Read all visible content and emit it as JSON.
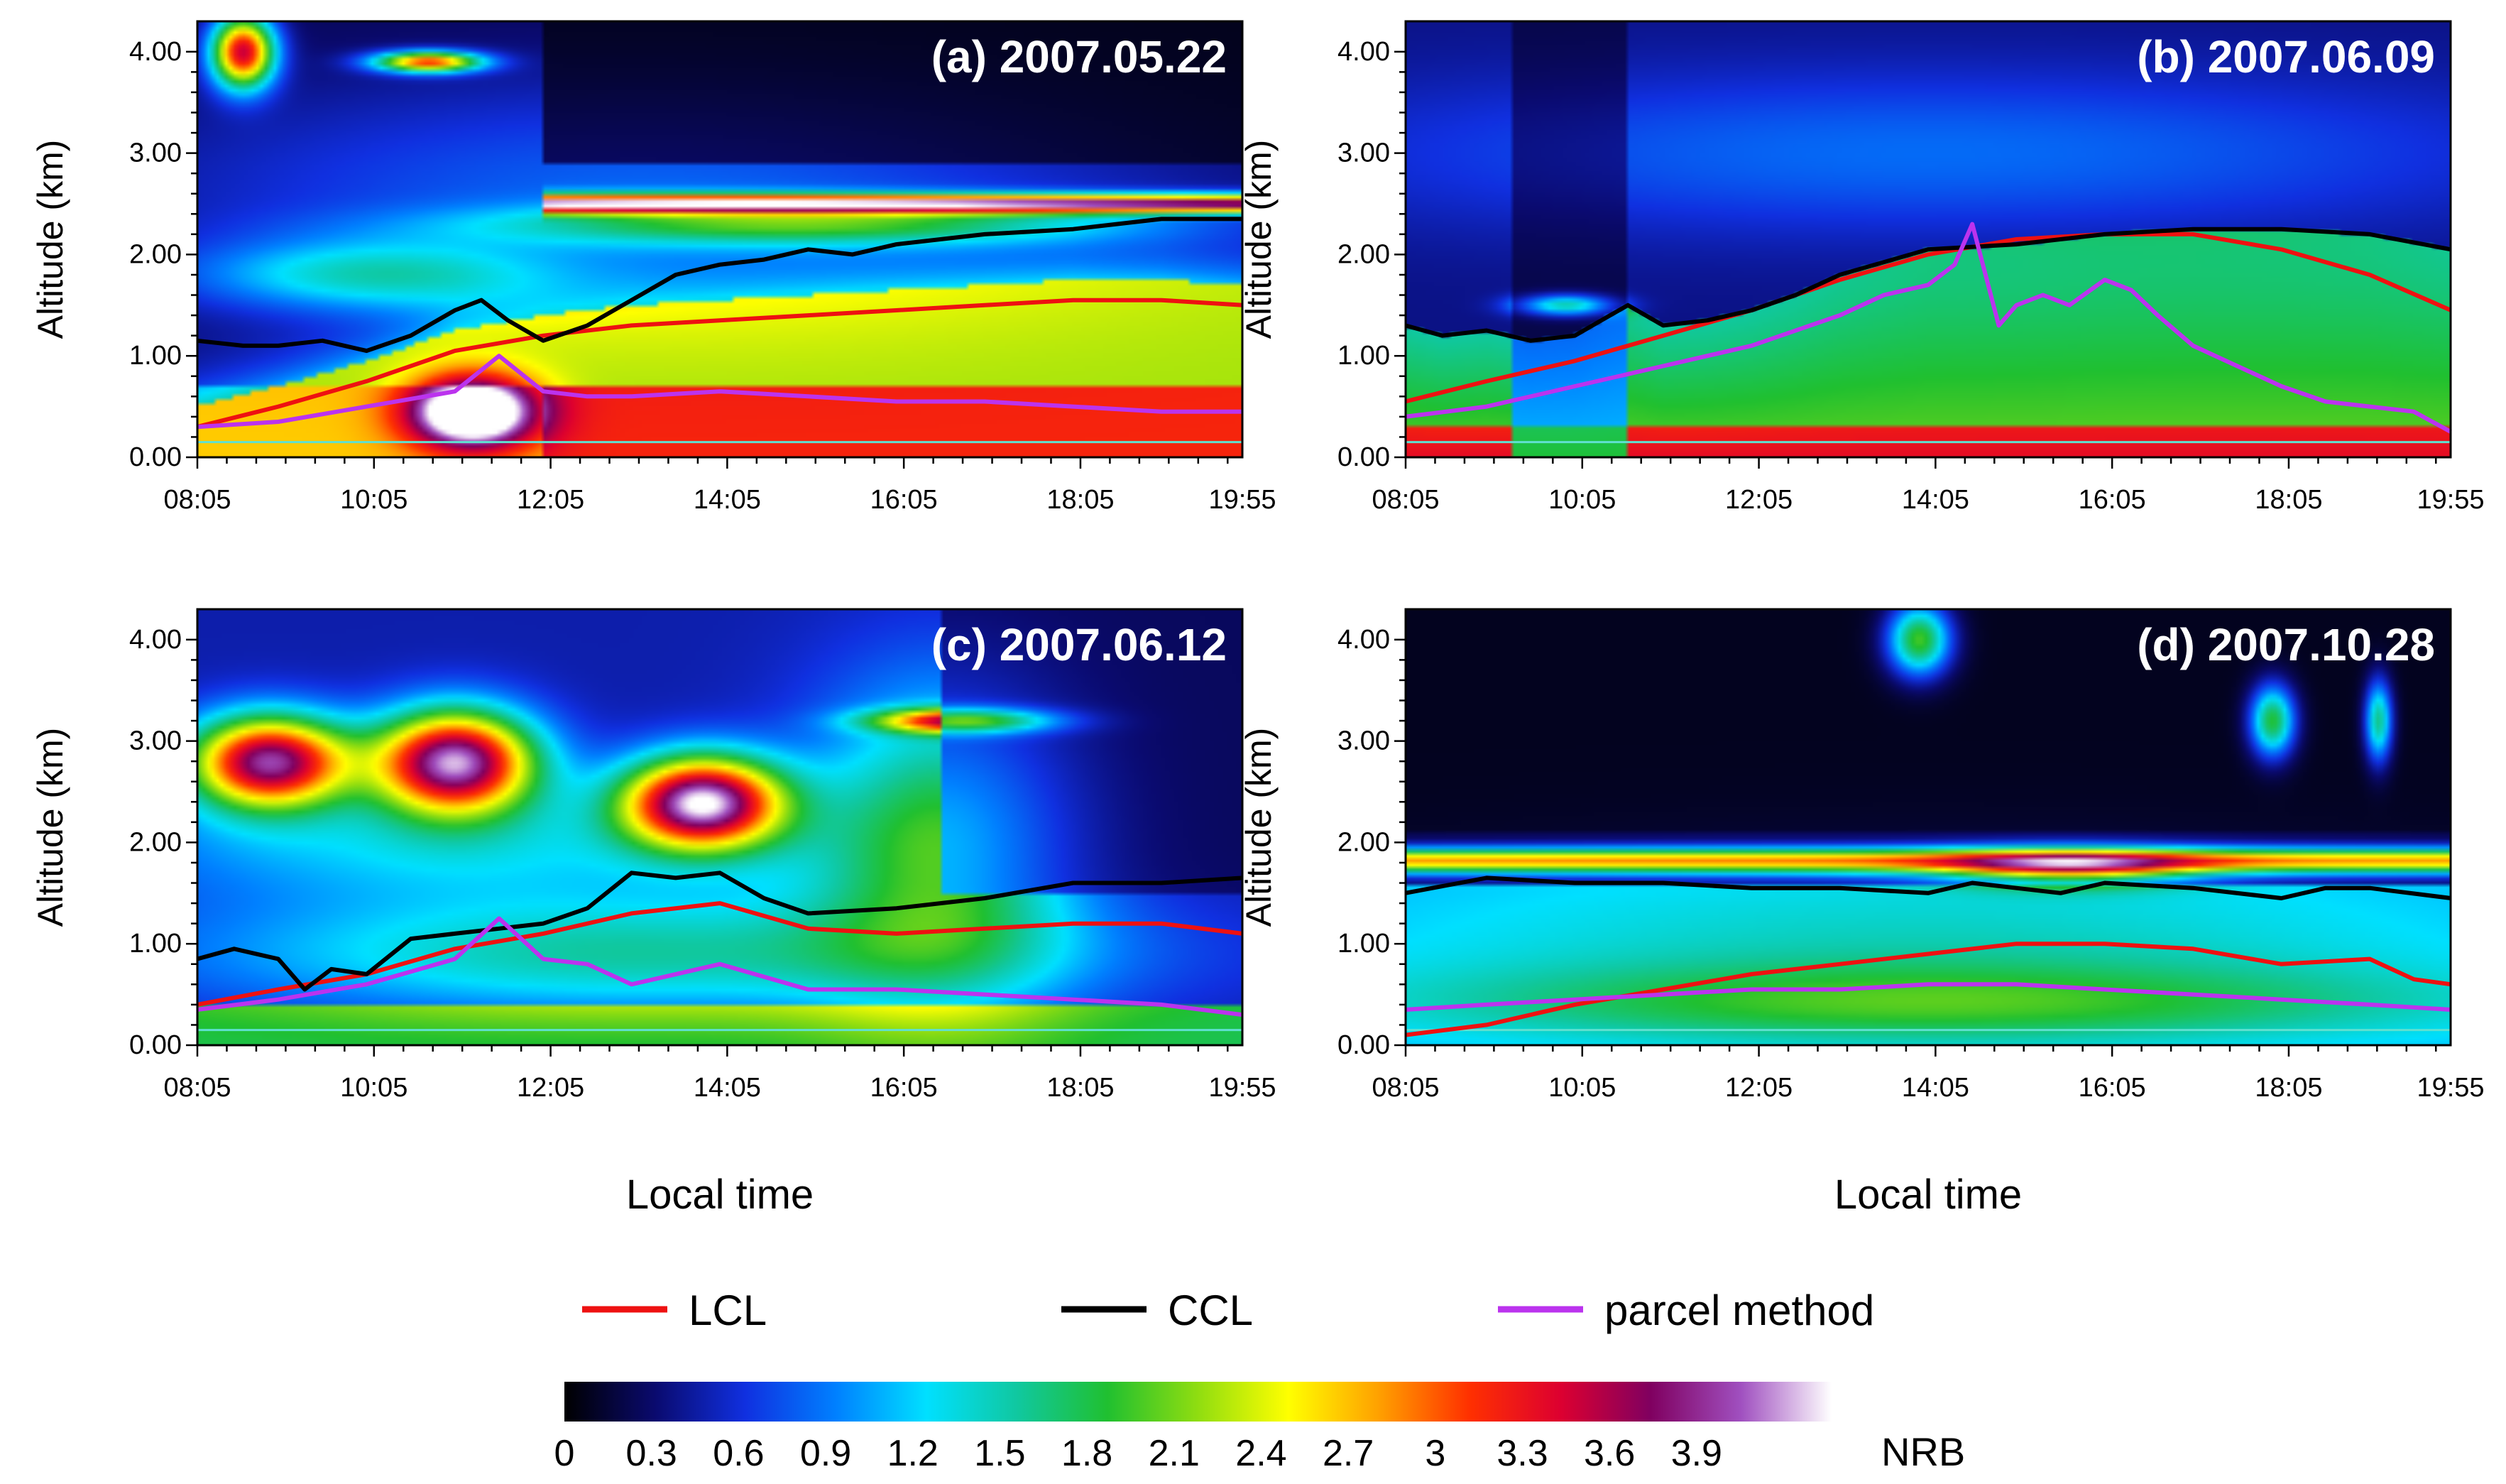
{
  "figure": {
    "x_axis_title": "Local time",
    "y_axis_title": "Altitude (km)",
    "x_tick_labels": [
      "08:05",
      "10:05",
      "12:05",
      "14:05",
      "16:05",
      "18:05",
      "19:55"
    ],
    "y_tick_labels": [
      "0.00",
      "1.00",
      "2.00",
      "3.00",
      "4.00"
    ],
    "legend": [
      {
        "name": "LCL",
        "color": "#ee1111"
      },
      {
        "name": "CCL",
        "color": "#000000"
      },
      {
        "name": "parcel method",
        "color": "#bb33ee"
      }
    ],
    "colorbar": {
      "label": "NRB",
      "ticks": [
        "0",
        "0.3",
        "0.6",
        "0.9",
        "1.2",
        "1.5",
        "1.8",
        "2.1",
        "2.4",
        "2.7",
        "3",
        "3.3",
        "3.6",
        "3.9"
      ],
      "colors": [
        "#000000",
        "#0a0a6e",
        "#1030e0",
        "#0080ff",
        "#00e0ff",
        "#10c8a0",
        "#20c030",
        "#90dd10",
        "#ffff00",
        "#ffa000",
        "#ff3000",
        "#dd0030",
        "#800060",
        "#a050c0",
        "#ffffff"
      ]
    }
  },
  "chart_data": [
    {
      "type": "heatmap",
      "panel_label": "(a) 2007.05.22",
      "x_range": [
        "08:05",
        "19:55"
      ],
      "ylim": [
        0,
        4.3
      ],
      "series": [
        {
          "name": "LCL",
          "x_hours": [
            8.08,
            9.0,
            10.0,
            11.0,
            12.0,
            13.0,
            14.0,
            15.0,
            16.0,
            17.0,
            18.0,
            19.0,
            19.92
          ],
          "values": [
            0.3,
            0.5,
            0.75,
            1.05,
            1.2,
            1.3,
            1.35,
            1.4,
            1.45,
            1.5,
            1.55,
            1.55,
            1.5
          ]
        },
        {
          "name": "CCL",
          "x_hours": [
            8.08,
            8.6,
            9.0,
            9.5,
            10.0,
            10.5,
            11.0,
            11.3,
            11.6,
            12.0,
            12.5,
            13.0,
            13.5,
            14.0,
            14.5,
            15.0,
            15.5,
            16.0,
            17.0,
            18.0,
            19.0,
            19.92
          ],
          "values": [
            1.15,
            1.1,
            1.1,
            1.15,
            1.05,
            1.2,
            1.45,
            1.55,
            1.35,
            1.15,
            1.3,
            1.55,
            1.8,
            1.9,
            1.95,
            2.05,
            2.0,
            2.1,
            2.2,
            2.25,
            2.35,
            2.35
          ]
        },
        {
          "name": "parcel method",
          "x_hours": [
            8.08,
            9.0,
            10.0,
            11.0,
            11.5,
            12.0,
            12.5,
            13.0,
            14.0,
            15.0,
            16.0,
            17.0,
            18.0,
            19.0,
            19.92
          ],
          "values": [
            0.3,
            0.35,
            0.5,
            0.65,
            1.0,
            0.65,
            0.6,
            0.6,
            0.65,
            0.6,
            0.55,
            0.55,
            0.5,
            0.45,
            0.45
          ]
        }
      ]
    },
    {
      "type": "heatmap",
      "panel_label": "(b) 2007.06.09",
      "x_range": [
        "08:05",
        "19:55"
      ],
      "ylim": [
        0,
        4.3
      ],
      "series": [
        {
          "name": "LCL",
          "x_hours": [
            8.08,
            9.0,
            10.0,
            11.0,
            12.0,
            13.0,
            14.0,
            15.0,
            16.0,
            17.0,
            18.0,
            19.0,
            19.92
          ],
          "values": [
            0.55,
            0.75,
            0.95,
            1.2,
            1.45,
            1.75,
            2.0,
            2.15,
            2.2,
            2.2,
            2.05,
            1.8,
            1.45
          ]
        },
        {
          "name": "CCL",
          "x_hours": [
            8.08,
            8.5,
            9.0,
            9.5,
            10.0,
            10.3,
            10.6,
            11.0,
            11.5,
            12.0,
            12.5,
            13.0,
            14.0,
            15.0,
            16.0,
            17.0,
            18.0,
            19.0,
            19.92
          ],
          "values": [
            1.3,
            1.2,
            1.25,
            1.15,
            1.2,
            1.35,
            1.5,
            1.3,
            1.35,
            1.45,
            1.6,
            1.8,
            2.05,
            2.1,
            2.2,
            2.25,
            2.25,
            2.2,
            2.05
          ]
        },
        {
          "name": "parcel method",
          "x_hours": [
            8.08,
            9.0,
            10.0,
            11.0,
            12.0,
            13.0,
            13.5,
            14.0,
            14.3,
            14.5,
            14.8,
            15.0,
            15.3,
            15.6,
            16.0,
            16.3,
            16.6,
            17.0,
            17.5,
            18.0,
            18.5,
            19.0,
            19.5,
            19.92
          ],
          "values": [
            0.4,
            0.5,
            0.7,
            0.9,
            1.1,
            1.4,
            1.6,
            1.7,
            1.9,
            2.3,
            1.3,
            1.5,
            1.6,
            1.5,
            1.75,
            1.65,
            1.4,
            1.1,
            0.9,
            0.7,
            0.55,
            0.5,
            0.45,
            0.25
          ]
        }
      ]
    },
    {
      "type": "heatmap",
      "panel_label": "(c) 2007.06.12",
      "x_range": [
        "08:05",
        "19:55"
      ],
      "ylim": [
        0,
        4.3
      ],
      "series": [
        {
          "name": "LCL",
          "x_hours": [
            8.08,
            9.0,
            10.0,
            11.0,
            12.0,
            13.0,
            14.0,
            15.0,
            16.0,
            17.0,
            18.0,
            19.0,
            19.92
          ],
          "values": [
            0.4,
            0.55,
            0.7,
            0.95,
            1.1,
            1.3,
            1.4,
            1.15,
            1.1,
            1.15,
            1.2,
            1.2,
            1.1
          ]
        },
        {
          "name": "CCL",
          "x_hours": [
            8.08,
            8.5,
            9.0,
            9.3,
            9.6,
            10.0,
            10.5,
            11.0,
            11.5,
            12.0,
            12.5,
            13.0,
            13.5,
            14.0,
            14.5,
            15.0,
            16.0,
            17.0,
            18.0,
            19.0,
            19.92
          ],
          "values": [
            0.85,
            0.95,
            0.85,
            0.55,
            0.75,
            0.7,
            1.05,
            1.1,
            1.15,
            1.2,
            1.35,
            1.7,
            1.65,
            1.7,
            1.45,
            1.3,
            1.35,
            1.45,
            1.6,
            1.6,
            1.65
          ]
        },
        {
          "name": "parcel method",
          "x_hours": [
            8.08,
            9.0,
            10.0,
            11.0,
            11.5,
            12.0,
            12.5,
            13.0,
            14.0,
            15.0,
            16.0,
            17.0,
            18.0,
            19.0,
            19.92
          ],
          "values": [
            0.35,
            0.45,
            0.6,
            0.85,
            1.25,
            0.85,
            0.8,
            0.6,
            0.8,
            0.55,
            0.55,
            0.5,
            0.45,
            0.4,
            0.3
          ]
        }
      ]
    },
    {
      "type": "heatmap",
      "panel_label": "(d) 2007.10.28",
      "x_range": [
        "08:05",
        "19:55"
      ],
      "ylim": [
        0,
        4.3
      ],
      "series": [
        {
          "name": "LCL",
          "x_hours": [
            8.08,
            9.0,
            10.0,
            11.0,
            12.0,
            13.0,
            14.0,
            15.0,
            16.0,
            17.0,
            18.0,
            19.0,
            19.5,
            19.92
          ],
          "values": [
            0.1,
            0.2,
            0.4,
            0.55,
            0.7,
            0.8,
            0.9,
            1.0,
            1.0,
            0.95,
            0.8,
            0.85,
            0.65,
            0.6
          ]
        },
        {
          "name": "CCL",
          "x_hours": [
            8.08,
            9.0,
            10.0,
            11.0,
            12.0,
            13.0,
            14.0,
            14.5,
            15.0,
            15.5,
            16.0,
            17.0,
            18.0,
            18.5,
            19.0,
            19.92
          ],
          "values": [
            1.5,
            1.65,
            1.6,
            1.6,
            1.55,
            1.55,
            1.5,
            1.6,
            1.55,
            1.5,
            1.6,
            1.55,
            1.45,
            1.55,
            1.55,
            1.45
          ]
        },
        {
          "name": "parcel method",
          "x_hours": [
            8.08,
            9.0,
            10.0,
            11.0,
            12.0,
            13.0,
            14.0,
            15.0,
            16.0,
            17.0,
            18.0,
            19.0,
            19.92
          ],
          "values": [
            0.35,
            0.4,
            0.45,
            0.5,
            0.55,
            0.55,
            0.6,
            0.6,
            0.55,
            0.5,
            0.45,
            0.4,
            0.35
          ]
        }
      ]
    }
  ]
}
